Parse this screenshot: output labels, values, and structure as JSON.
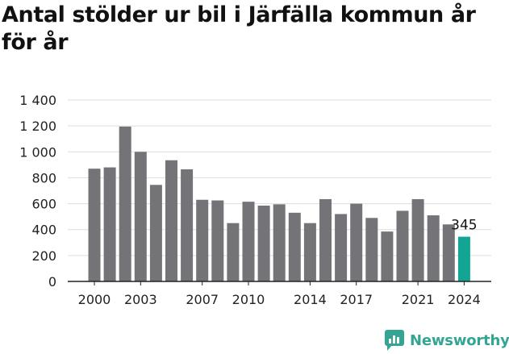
{
  "title": "Antal stölder ur bil i Järfälla kommun år för år",
  "brand": {
    "name": "Newsworthy",
    "color": "#34a593",
    "icon": "chart-bubble-icon"
  },
  "chart_data": {
    "type": "bar",
    "title": "Antal stölder ur bil i Järfälla kommun år för år",
    "xlabel": "",
    "ylabel": "",
    "x": [
      2000,
      2001,
      2002,
      2003,
      2004,
      2005,
      2006,
      2007,
      2008,
      2009,
      2010,
      2011,
      2012,
      2013,
      2014,
      2015,
      2016,
      2017,
      2018,
      2019,
      2020,
      2021,
      2022,
      2023,
      2024
    ],
    "values": [
      870,
      880,
      1195,
      1000,
      745,
      935,
      865,
      630,
      625,
      450,
      615,
      585,
      595,
      530,
      450,
      635,
      520,
      600,
      490,
      385,
      545,
      635,
      510,
      440,
      345
    ],
    "ylim": [
      0,
      1400
    ],
    "yticks": [
      0,
      200,
      400,
      600,
      800,
      1000,
      1200,
      1400
    ],
    "ytick_labels": [
      "0",
      "200",
      "400",
      "600",
      "800",
      "1 000",
      "1 200",
      "1 400"
    ],
    "xticks": [
      2000,
      2003,
      2007,
      2010,
      2014,
      2017,
      2021,
      2024
    ],
    "grid": true,
    "colors": {
      "bar": "#747478",
      "highlight": "#12a594",
      "grid": "#dddddd",
      "axis": "#222222"
    },
    "highlight_index": 24,
    "annotations": [
      {
        "x": 2024,
        "text": "345"
      }
    ]
  }
}
